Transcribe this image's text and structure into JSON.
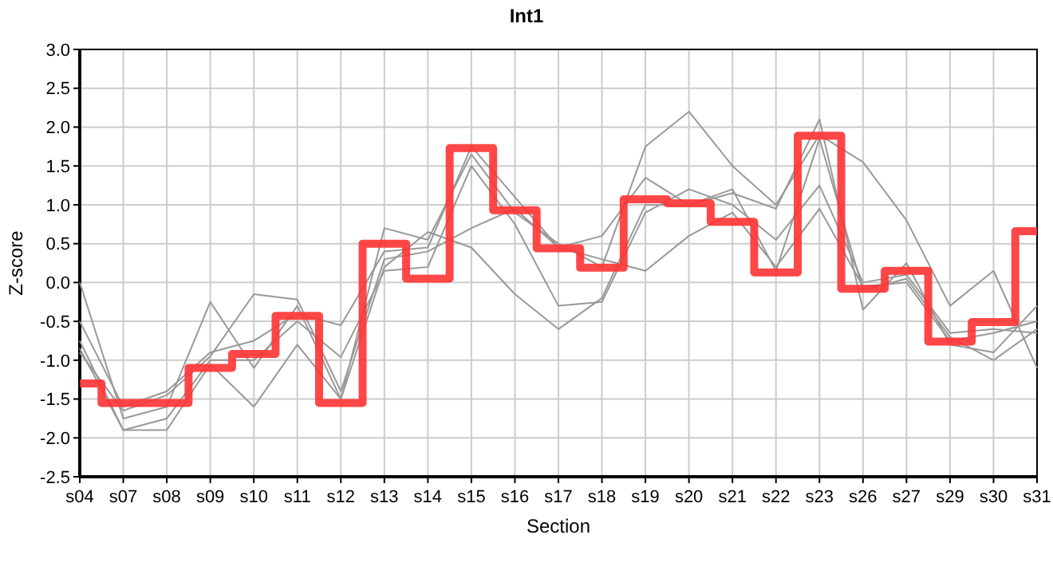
{
  "chart_data": {
    "type": "line",
    "title": "Int1",
    "xlabel": "Section",
    "ylabel": "Z-score",
    "categories": [
      "s04",
      "s07",
      "s08",
      "s09",
      "s10",
      "s11",
      "s12",
      "s13",
      "s14",
      "s15",
      "s16",
      "s17",
      "s18",
      "s19",
      "s20",
      "s21",
      "s22",
      "s23",
      "s26",
      "s27",
      "s29",
      "s30",
      "s31"
    ],
    "ylim": [
      -2.5,
      3
    ],
    "yticks": [
      {
        "value": -2.5,
        "label": "-2.5"
      },
      {
        "value": -2,
        "label": "-2.0"
      },
      {
        "value": -1.5,
        "label": "-1.5"
      },
      {
        "value": -1,
        "label": "-1.0"
      },
      {
        "value": -0.5,
        "label": "-0.5"
      },
      {
        "value": 0,
        "label": "0.0"
      },
      {
        "value": 0.5,
        "label": "0.5"
      },
      {
        "value": 1,
        "label": "1.0"
      },
      {
        "value": 1.5,
        "label": "1.5"
      },
      {
        "value": 2,
        "label": "2.0"
      },
      {
        "value": 2.5,
        "label": "2.5"
      },
      {
        "value": 3,
        "label": "3.0"
      }
    ],
    "grid": true,
    "marker": "none",
    "series": [
      {
        "color": "#999999",
        "values": [
          0.0,
          -1.75,
          -1.6,
          -0.25,
          -1.1,
          -0.3,
          -1.5,
          0.7,
          0.55,
          1.65,
          0.9,
          0.5,
          0.2,
          1.75,
          2.2,
          1.5,
          1.0,
          1.9,
          1.55,
          0.8,
          -0.3,
          0.15,
          -1.1
        ]
      },
      {
        "color": "#999999",
        "values": [
          -0.5,
          -1.6,
          -1.4,
          -0.9,
          -0.75,
          -0.4,
          -0.55,
          0.4,
          0.45,
          1.75,
          1.1,
          0.45,
          0.6,
          1.35,
          1.0,
          1.15,
          0.95,
          2.1,
          -0.35,
          0.25,
          -0.8,
          -0.9,
          -0.3
        ]
      },
      {
        "color": "#999999",
        "values": [
          -0.75,
          -1.9,
          -1.9,
          -1.05,
          -1.6,
          -0.8,
          -1.5,
          0.2,
          0.65,
          0.45,
          -0.15,
          -0.6,
          -0.2,
          1.0,
          1.0,
          1.2,
          0.15,
          1.85,
          -0.1,
          0.05,
          -0.7,
          -1.0,
          -0.6
        ]
      },
      {
        "color": "#999999",
        "values": [
          -0.85,
          -1.9,
          -1.75,
          -1.0,
          -1.0,
          -0.5,
          -0.96,
          0.15,
          0.2,
          1.5,
          0.75,
          -0.3,
          -0.25,
          0.9,
          1.2,
          1.0,
          0.55,
          1.25,
          0.0,
          0.1,
          -0.65,
          -0.6,
          -0.65
        ]
      },
      {
        "color": "#999999",
        "values": [
          -0.9,
          -1.65,
          -1.45,
          -0.95,
          -0.15,
          -0.22,
          -1.4,
          0.3,
          0.4,
          0.7,
          0.95,
          0.45,
          0.3,
          0.15,
          0.6,
          0.9,
          0.2,
          0.95,
          -0.05,
          0.0,
          -0.75,
          -0.65,
          -0.5
        ]
      },
      {
        "type": "step",
        "color": "#ff3333",
        "values": [
          -1.3,
          -1.55,
          -1.55,
          -1.1,
          -0.92,
          -0.43,
          -1.55,
          0.5,
          0.05,
          1.73,
          0.93,
          0.44,
          0.19,
          1.07,
          1.02,
          0.78,
          0.13,
          1.89,
          -0.08,
          0.15,
          -0.76,
          -0.51,
          0.66
        ]
      }
    ]
  }
}
